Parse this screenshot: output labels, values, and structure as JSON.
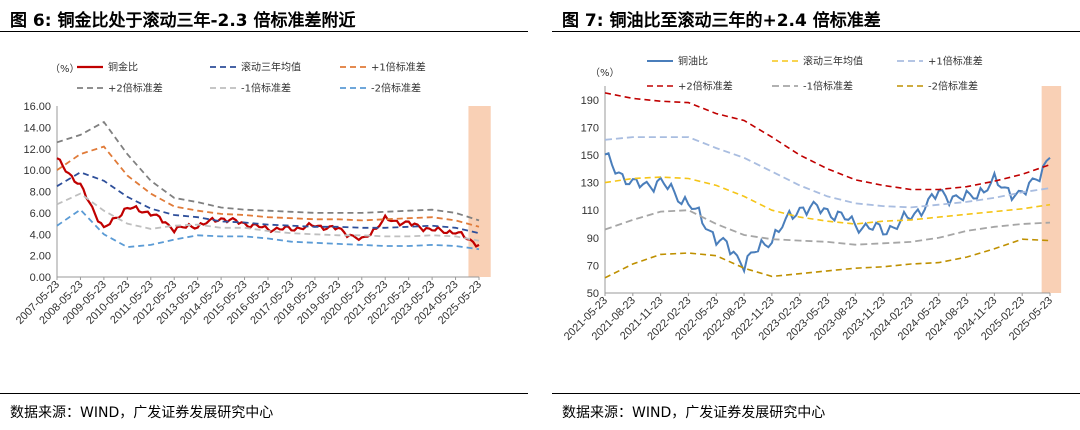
{
  "left": {
    "title": "图 6:  铜金比处于滚动三年-2.3 倍标准差附近",
    "source": "数据来源：WIND，广发证券发展研究中心",
    "unit": "（%）"
  },
  "right": {
    "title": "图 7:  铜油比至滚动三年的+2.4 倍标准差",
    "source": "数据来源：WIND，广发证券发展研究中心",
    "unit": "（%）"
  },
  "colors": {
    "ratio_left": "#c00000",
    "ratio_right": "#4a7ebb",
    "mean_left": "#2e4f9a",
    "mean_right": "#f5c518",
    "plus1": "#e07b39",
    "plus2_left": "#808080",
    "plus2_right": "#c00000",
    "minus1_left": "#bfbfbf",
    "minus1_right": "#a6a6a6",
    "minus2_left": "#5b9bd5",
    "minus2_right": "#bf9000",
    "plus1_right": "#a9bde0",
    "highlight": "#f8cbad"
  },
  "chart_data": [
    {
      "type": "line",
      "ylim": [
        0,
        16
      ],
      "yticks": [
        "0.00",
        "2.00",
        "4.00",
        "6.00",
        "8.00",
        "10.00",
        "12.00",
        "14.00",
        "16.00"
      ],
      "categories": [
        "2007-05-23",
        "2008-05-23",
        "2009-05-23",
        "2010-05-23",
        "2011-05-23",
        "2012-05-23",
        "2013-05-23",
        "2014-05-23",
        "2015-05-23",
        "2016-05-23",
        "2017-05-23",
        "2018-05-23",
        "2019-05-23",
        "2020-05-23",
        "2021-05-23",
        "2022-05-23",
        "2023-05-23",
        "2024-05-23",
        "2025-05-23"
      ],
      "highlight_range": [
        17.55,
        18.5
      ],
      "series": [
        {
          "name": "铜金比",
          "key": "ratio",
          "values": [
            11.0,
            8.5,
            4.5,
            6.5,
            6.0,
            4.5,
            4.8,
            5.5,
            5.0,
            4.5,
            4.5,
            4.8,
            4.5,
            3.4,
            5.4,
            5.0,
            4.4,
            4.2,
            3.0
          ]
        },
        {
          "name": "滚动三年均值",
          "key": "mean",
          "values": [
            8.5,
            9.8,
            9.0,
            7.5,
            6.4,
            5.8,
            5.6,
            5.2,
            5.1,
            4.9,
            4.8,
            4.7,
            4.7,
            4.6,
            4.6,
            4.7,
            4.8,
            4.6,
            4.1
          ]
        },
        {
          "name": "+1倍标准差",
          "key": "plus1",
          "values": [
            10.0,
            11.5,
            12.2,
            9.5,
            7.8,
            6.6,
            6.2,
            5.9,
            5.8,
            5.6,
            5.5,
            5.4,
            5.4,
            5.3,
            5.4,
            5.5,
            5.6,
            5.3,
            4.7
          ]
        },
        {
          "name": "+2倍标准差",
          "key": "plus2",
          "values": [
            12.6,
            13.3,
            14.5,
            11.5,
            9.0,
            7.4,
            7.0,
            6.5,
            6.3,
            6.2,
            6.1,
            6.0,
            6.0,
            6.0,
            6.1,
            6.2,
            6.3,
            6.0,
            5.3
          ]
        },
        {
          "name": "-1倍标准差",
          "key": "minus1",
          "values": [
            6.8,
            7.8,
            6.2,
            5.0,
            4.5,
            4.8,
            4.9,
            4.6,
            4.6,
            4.3,
            4.1,
            4.0,
            3.9,
            3.9,
            3.8,
            3.8,
            3.9,
            3.8,
            3.4
          ]
        },
        {
          "name": "-2倍标准差",
          "key": "minus2",
          "values": [
            4.8,
            6.3,
            4.0,
            2.8,
            3.0,
            3.5,
            3.9,
            3.8,
            3.8,
            3.6,
            3.3,
            3.2,
            3.1,
            3.0,
            2.9,
            2.9,
            3.0,
            2.9,
            2.6
          ]
        }
      ]
    },
    {
      "type": "line",
      "ylim": [
        50,
        200
      ],
      "yticks": [
        "50",
        "70",
        "90",
        "110",
        "130",
        "150",
        "170",
        "190"
      ],
      "categories": [
        "2021-05-23",
        "2021-08-23",
        "2021-11-23",
        "2022-02-23",
        "2022-05-23",
        "2022-08-23",
        "2022-11-23",
        "2023-02-23",
        "2023-05-23",
        "2023-08-23",
        "2023-11-23",
        "2024-02-23",
        "2024-05-23",
        "2024-08-23",
        "2024-11-23",
        "2025-02-23",
        "2025-05-23"
      ],
      "highlight_range": [
        15.7,
        16.4
      ],
      "series": [
        {
          "name": "铜油比",
          "key": "ratio",
          "values": [
            148,
            128,
            130,
            115,
            90,
            72,
            90,
            112,
            110,
            100,
            95,
            105,
            122,
            118,
            130,
            120,
            148
          ]
        },
        {
          "name": "滚动三年均值",
          "key": "mean",
          "values": [
            130,
            133,
            134,
            133,
            128,
            120,
            110,
            105,
            102,
            100,
            102,
            103,
            105,
            107,
            109,
            111,
            114
          ]
        },
        {
          "name": "+1倍标准差",
          "key": "plus1",
          "values": [
            161,
            163,
            163,
            163,
            155,
            148,
            138,
            128,
            120,
            115,
            113,
            112,
            114,
            116,
            119,
            123,
            126
          ]
        },
        {
          "name": "+2倍标准差",
          "key": "plus2",
          "values": [
            195,
            191,
            189,
            188,
            180,
            175,
            163,
            150,
            140,
            132,
            128,
            125,
            125,
            127,
            131,
            136,
            143
          ]
        },
        {
          "name": "-1倍标准差",
          "key": "minus1",
          "values": [
            96,
            103,
            109,
            110,
            100,
            92,
            89,
            88,
            87,
            85,
            86,
            87,
            90,
            95,
            98,
            100,
            101
          ]
        },
        {
          "name": "-2倍标准差",
          "key": "minus2",
          "values": [
            61,
            71,
            78,
            79,
            77,
            68,
            62,
            64,
            66,
            68,
            69,
            71,
            72,
            76,
            82,
            89,
            88
          ]
        }
      ]
    }
  ]
}
